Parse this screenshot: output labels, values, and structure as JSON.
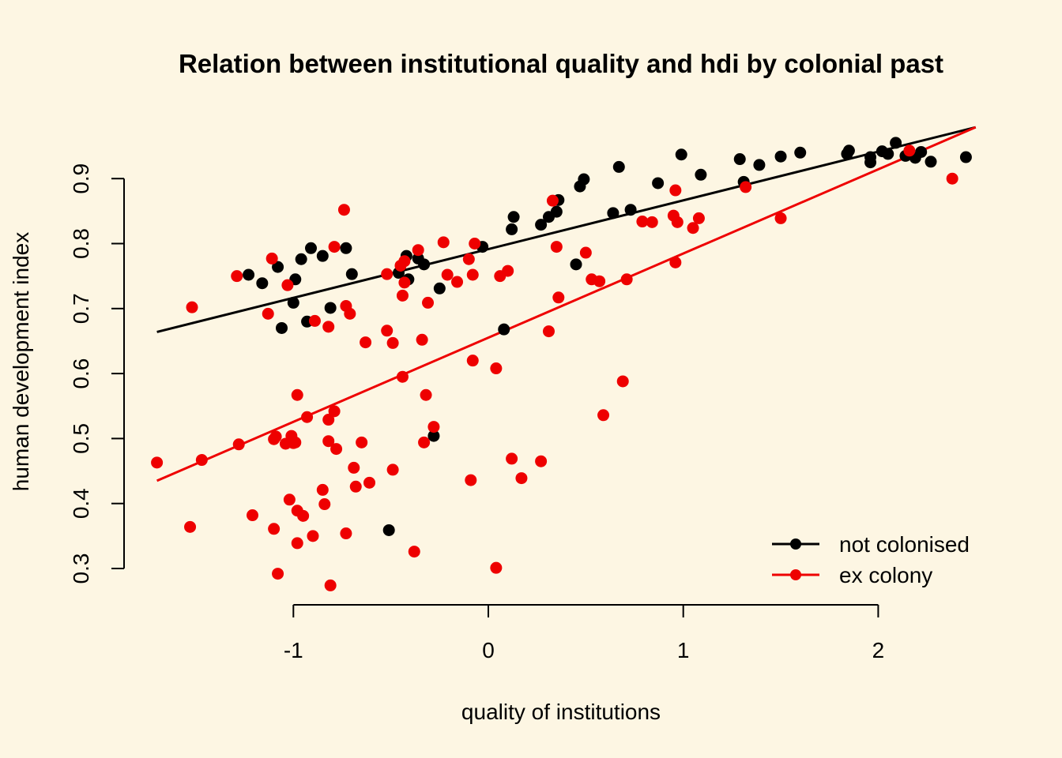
{
  "chart_data": {
    "type": "scatter",
    "title": "Relation between institutional quality and hdi by colonial past",
    "xlabel": "quality of institutions",
    "ylabel": "human development index",
    "xlim": [
      -1.7,
      2.5
    ],
    "ylim": [
      0.27,
      0.98
    ],
    "x_ticks": [
      -1,
      0,
      1,
      2
    ],
    "y_ticks": [
      0.3,
      0.4,
      0.5,
      0.6,
      0.7,
      0.8,
      0.9
    ],
    "x_tick_labels": [
      "-1",
      "0",
      "1",
      "2"
    ],
    "y_tick_labels": [
      "0.3",
      "0.4",
      "0.5",
      "0.6",
      "0.7",
      "0.8",
      "0.9"
    ],
    "background": "#FDF6E3",
    "legend_position": "bottom-right",
    "grid": false,
    "series": [
      {
        "name": "not colonised",
        "color": "#000000",
        "points": [
          [
            -1.23,
            0.752
          ],
          [
            -1.16,
            0.739
          ],
          [
            -1.08,
            0.764
          ],
          [
            -1.06,
            0.67
          ],
          [
            -1.0,
            0.709
          ],
          [
            -0.99,
            0.745
          ],
          [
            -0.96,
            0.776
          ],
          [
            -0.93,
            0.68
          ],
          [
            -0.91,
            0.793
          ],
          [
            -0.85,
            0.781
          ],
          [
            -0.81,
            0.701
          ],
          [
            -0.73,
            0.793
          ],
          [
            -0.7,
            0.753
          ],
          [
            -0.51,
            0.359
          ],
          [
            -0.46,
            0.755
          ],
          [
            -0.42,
            0.781
          ],
          [
            -0.41,
            0.745
          ],
          [
            -0.36,
            0.777
          ],
          [
            -0.33,
            0.768
          ],
          [
            -0.28,
            0.504
          ],
          [
            -0.25,
            0.731
          ],
          [
            -0.03,
            0.795
          ],
          [
            0.08,
            0.668
          ],
          [
            0.12,
            0.822
          ],
          [
            0.13,
            0.841
          ],
          [
            0.27,
            0.829
          ],
          [
            0.31,
            0.841
          ],
          [
            0.35,
            0.849
          ],
          [
            0.36,
            0.867
          ],
          [
            0.45,
            0.768
          ],
          [
            0.47,
            0.888
          ],
          [
            0.49,
            0.899
          ],
          [
            0.64,
            0.847
          ],
          [
            0.67,
            0.918
          ],
          [
            0.73,
            0.852
          ],
          [
            0.87,
            0.893
          ],
          [
            0.99,
            0.937
          ],
          [
            1.09,
            0.906
          ],
          [
            1.29,
            0.93
          ],
          [
            1.31,
            0.895
          ],
          [
            1.39,
            0.921
          ],
          [
            1.5,
            0.934
          ],
          [
            1.6,
            0.94
          ],
          [
            1.84,
            0.938
          ],
          [
            1.85,
            0.943
          ],
          [
            1.96,
            0.925
          ],
          [
            1.96,
            0.933
          ],
          [
            2.02,
            0.942
          ],
          [
            2.05,
            0.938
          ],
          [
            2.09,
            0.955
          ],
          [
            2.14,
            0.935
          ],
          [
            2.19,
            0.932
          ],
          [
            2.22,
            0.941
          ],
          [
            2.27,
            0.926
          ],
          [
            2.45,
            0.933
          ]
        ],
        "fit": {
          "x": [
            -1.7,
            2.5
          ],
          "y": [
            0.664,
            0.979
          ]
        }
      },
      {
        "name": "ex colony",
        "color": "#EE0000",
        "points": [
          [
            -1.7,
            0.463
          ],
          [
            -1.53,
            0.364
          ],
          [
            -1.52,
            0.702
          ],
          [
            -1.47,
            0.467
          ],
          [
            -1.29,
            0.75
          ],
          [
            -1.28,
            0.491
          ],
          [
            -1.21,
            0.382
          ],
          [
            -1.13,
            0.692
          ],
          [
            -1.11,
            0.777
          ],
          [
            -1.1,
            0.499
          ],
          [
            -1.1,
            0.361
          ],
          [
            -1.09,
            0.503
          ],
          [
            -1.08,
            0.292
          ],
          [
            -1.04,
            0.492
          ],
          [
            -1.03,
            0.736
          ],
          [
            -1.02,
            0.406
          ],
          [
            -1.01,
            0.504
          ],
          [
            -1.0,
            0.493
          ],
          [
            -0.99,
            0.494
          ],
          [
            -0.98,
            0.567
          ],
          [
            -0.98,
            0.389
          ],
          [
            -0.98,
            0.339
          ],
          [
            -0.95,
            0.381
          ],
          [
            -0.93,
            0.533
          ],
          [
            -0.9,
            0.35
          ],
          [
            -0.89,
            0.681
          ],
          [
            -0.85,
            0.421
          ],
          [
            -0.84,
            0.399
          ],
          [
            -0.82,
            0.672
          ],
          [
            -0.82,
            0.529
          ],
          [
            -0.82,
            0.496
          ],
          [
            -0.81,
            0.274
          ],
          [
            -0.79,
            0.542
          ],
          [
            -0.79,
            0.795
          ],
          [
            -0.78,
            0.484
          ],
          [
            -0.74,
            0.852
          ],
          [
            -0.73,
            0.704
          ],
          [
            -0.73,
            0.354
          ],
          [
            -0.71,
            0.692
          ],
          [
            -0.69,
            0.455
          ],
          [
            -0.68,
            0.426
          ],
          [
            -0.65,
            0.494
          ],
          [
            -0.63,
            0.648
          ],
          [
            -0.61,
            0.432
          ],
          [
            -0.52,
            0.753
          ],
          [
            -0.52,
            0.666
          ],
          [
            -0.49,
            0.647
          ],
          [
            -0.49,
            0.452
          ],
          [
            -0.45,
            0.766
          ],
          [
            -0.44,
            0.72
          ],
          [
            -0.44,
            0.595
          ],
          [
            -0.43,
            0.773
          ],
          [
            -0.43,
            0.74
          ],
          [
            -0.38,
            0.326
          ],
          [
            -0.36,
            0.79
          ],
          [
            -0.34,
            0.652
          ],
          [
            -0.33,
            0.494
          ],
          [
            -0.32,
            0.567
          ],
          [
            -0.31,
            0.709
          ],
          [
            -0.28,
            0.518
          ],
          [
            -0.23,
            0.802
          ],
          [
            -0.21,
            0.752
          ],
          [
            -0.16,
            0.741
          ],
          [
            -0.1,
            0.776
          ],
          [
            -0.09,
            0.436
          ],
          [
            -0.08,
            0.752
          ],
          [
            -0.08,
            0.62
          ],
          [
            -0.07,
            0.8
          ],
          [
            0.04,
            0.608
          ],
          [
            0.04,
            0.301
          ],
          [
            0.06,
            0.75
          ],
          [
            0.1,
            0.758
          ],
          [
            0.12,
            0.469
          ],
          [
            0.17,
            0.439
          ],
          [
            0.27,
            0.465
          ],
          [
            0.31,
            0.665
          ],
          [
            0.33,
            0.866
          ],
          [
            0.35,
            0.795
          ],
          [
            0.36,
            0.717
          ],
          [
            0.5,
            0.786
          ],
          [
            0.53,
            0.745
          ],
          [
            0.57,
            0.742
          ],
          [
            0.59,
            0.536
          ],
          [
            0.69,
            0.588
          ],
          [
            0.71,
            0.745
          ],
          [
            0.79,
            0.834
          ],
          [
            0.84,
            0.833
          ],
          [
            0.95,
            0.843
          ],
          [
            0.96,
            0.882
          ],
          [
            0.96,
            0.771
          ],
          [
            0.97,
            0.833
          ],
          [
            1.05,
            0.824
          ],
          [
            1.08,
            0.839
          ],
          [
            1.32,
            0.887
          ],
          [
            1.5,
            0.839
          ],
          [
            2.16,
            0.943
          ],
          [
            2.38,
            0.9
          ]
        ],
        "fit": {
          "x": [
            -1.7,
            2.5
          ],
          "y": [
            0.435,
            0.979
          ]
        }
      }
    ]
  }
}
